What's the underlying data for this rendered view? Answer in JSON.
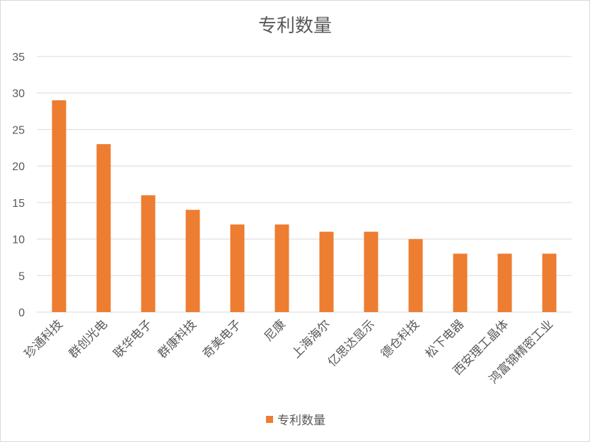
{
  "chart_data": {
    "type": "bar",
    "title": "专利数量",
    "categories": [
      "珍通科技",
      "群创光电",
      "联华电子",
      "群康科技",
      "奇美电子",
      "尼康",
      "上海海尔",
      "亿思达显示",
      "德仓科技",
      "松下电器",
      "西安理工晶体",
      "鸿富锦精密工业"
    ],
    "series": [
      {
        "name": "专利数量",
        "values": [
          29,
          23,
          16,
          14,
          12,
          12,
          11,
          11,
          10,
          8,
          8,
          8
        ]
      }
    ],
    "ylim": [
      0,
      35
    ],
    "yticks": [
      0,
      5,
      10,
      15,
      20,
      25,
      30,
      35
    ],
    "grid": true,
    "legend_position": "bottom",
    "bar_color": "#ED7D31"
  }
}
